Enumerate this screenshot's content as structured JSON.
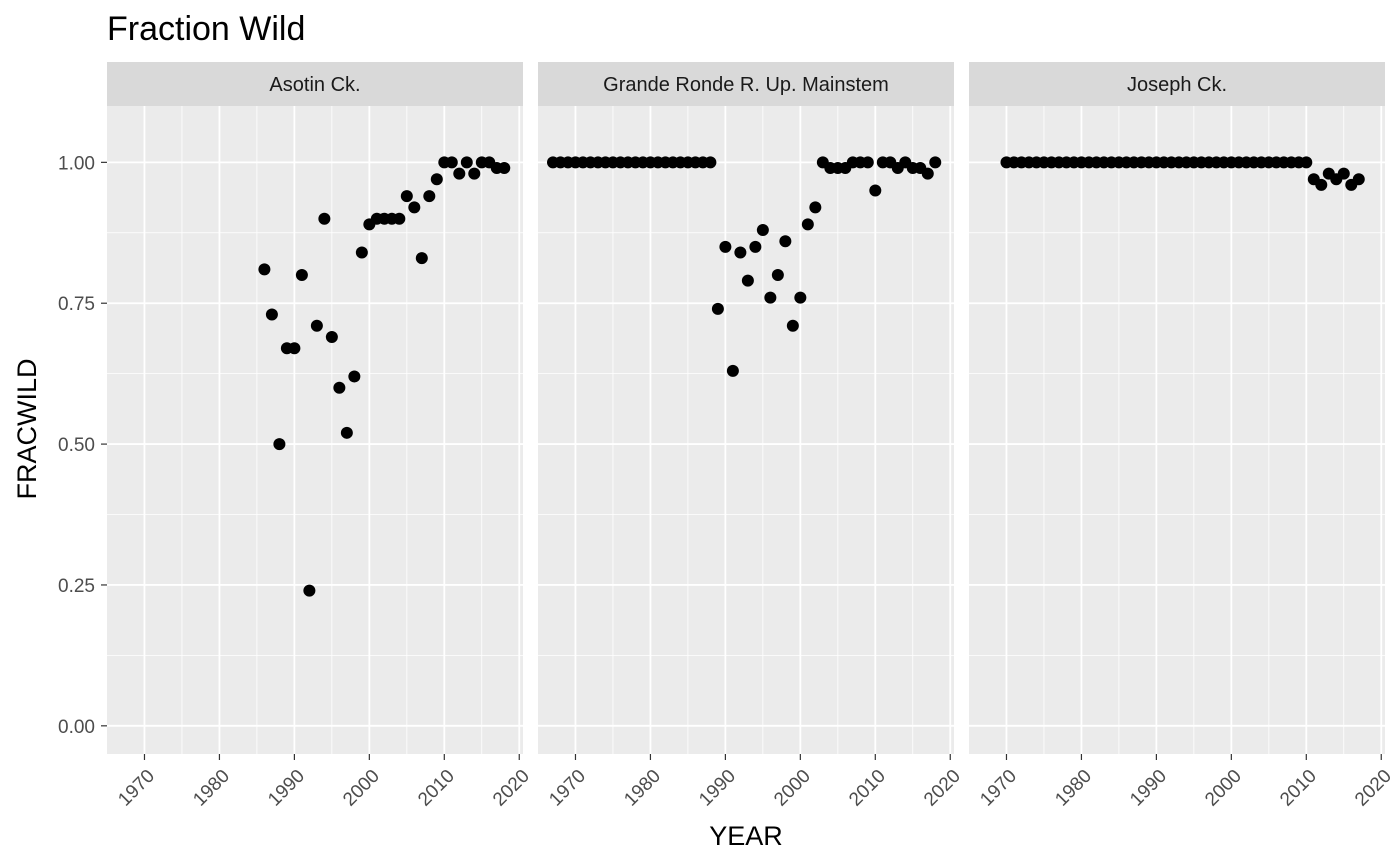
{
  "chart_data": {
    "type": "scatter",
    "title": "Fraction Wild",
    "xlabel": "YEAR",
    "ylabel": "FRACWILD",
    "xlim": [
      1965,
      2020.5
    ],
    "ylim": [
      -0.05,
      1.1
    ],
    "x_ticks": [
      1970,
      1980,
      1990,
      2000,
      2010,
      2020
    ],
    "y_ticks": [
      0.0,
      0.25,
      0.5,
      0.75,
      1.0
    ],
    "y_tick_labels": [
      "0.00",
      "0.25",
      "0.50",
      "0.75",
      "1.00"
    ],
    "grid": true,
    "colors": {
      "panel": "#ebebeb",
      "strip": "#d9d9d9",
      "grid": "#ffffff",
      "point": "#000000"
    },
    "panels": [
      {
        "name": "Asotin Ck.",
        "points": [
          [
            1986,
            0.81
          ],
          [
            1987,
            0.73
          ],
          [
            1988,
            0.5
          ],
          [
            1989,
            0.67
          ],
          [
            1990,
            0.67
          ],
          [
            1991,
            0.8
          ],
          [
            1992,
            0.24
          ],
          [
            1993,
            0.71
          ],
          [
            1994,
            0.9
          ],
          [
            1995,
            0.69
          ],
          [
            1996,
            0.6
          ],
          [
            1997,
            0.52
          ],
          [
            1998,
            0.62
          ],
          [
            1999,
            0.84
          ],
          [
            2000,
            0.89
          ],
          [
            2001,
            0.9
          ],
          [
            2002,
            0.9
          ],
          [
            2003,
            0.9
          ],
          [
            2004,
            0.9
          ],
          [
            2005,
            0.94
          ],
          [
            2006,
            0.92
          ],
          [
            2007,
            0.83
          ],
          [
            2008,
            0.94
          ],
          [
            2009,
            0.97
          ],
          [
            2010,
            1.0
          ],
          [
            2011,
            1.0
          ],
          [
            2012,
            0.98
          ],
          [
            2013,
            1.0
          ],
          [
            2014,
            0.98
          ],
          [
            2015,
            1.0
          ],
          [
            2016,
            1.0
          ],
          [
            2017,
            0.99
          ],
          [
            2018,
            0.99
          ]
        ]
      },
      {
        "name": "Grande Ronde R. Up. Mainstem",
        "points": [
          [
            1967,
            1.0
          ],
          [
            1968,
            1.0
          ],
          [
            1969,
            1.0
          ],
          [
            1970,
            1.0
          ],
          [
            1971,
            1.0
          ],
          [
            1972,
            1.0
          ],
          [
            1973,
            1.0
          ],
          [
            1974,
            1.0
          ],
          [
            1975,
            1.0
          ],
          [
            1976,
            1.0
          ],
          [
            1977,
            1.0
          ],
          [
            1978,
            1.0
          ],
          [
            1979,
            1.0
          ],
          [
            1980,
            1.0
          ],
          [
            1981,
            1.0
          ],
          [
            1982,
            1.0
          ],
          [
            1983,
            1.0
          ],
          [
            1984,
            1.0
          ],
          [
            1985,
            1.0
          ],
          [
            1986,
            1.0
          ],
          [
            1987,
            1.0
          ],
          [
            1988,
            1.0
          ],
          [
            1989,
            0.74
          ],
          [
            1990,
            0.85
          ],
          [
            1991,
            0.63
          ],
          [
            1992,
            0.84
          ],
          [
            1993,
            0.79
          ],
          [
            1994,
            0.85
          ],
          [
            1995,
            0.88
          ],
          [
            1996,
            0.76
          ],
          [
            1997,
            0.8
          ],
          [
            1998,
            0.86
          ],
          [
            1999,
            0.71
          ],
          [
            2000,
            0.76
          ],
          [
            2001,
            0.89
          ],
          [
            2002,
            0.92
          ],
          [
            2003,
            1.0
          ],
          [
            2004,
            0.99
          ],
          [
            2005,
            0.99
          ],
          [
            2006,
            0.99
          ],
          [
            2007,
            1.0
          ],
          [
            2008,
            1.0
          ],
          [
            2009,
            1.0
          ],
          [
            2010,
            0.95
          ],
          [
            2011,
            1.0
          ],
          [
            2012,
            1.0
          ],
          [
            2013,
            0.99
          ],
          [
            2014,
            1.0
          ],
          [
            2015,
            0.99
          ],
          [
            2016,
            0.99
          ],
          [
            2017,
            0.98
          ],
          [
            2018,
            1.0
          ]
        ]
      },
      {
        "name": "Joseph Ck.",
        "points": [
          [
            1970,
            1.0
          ],
          [
            1971,
            1.0
          ],
          [
            1972,
            1.0
          ],
          [
            1973,
            1.0
          ],
          [
            1974,
            1.0
          ],
          [
            1975,
            1.0
          ],
          [
            1976,
            1.0
          ],
          [
            1977,
            1.0
          ],
          [
            1978,
            1.0
          ],
          [
            1979,
            1.0
          ],
          [
            1980,
            1.0
          ],
          [
            1981,
            1.0
          ],
          [
            1982,
            1.0
          ],
          [
            1983,
            1.0
          ],
          [
            1984,
            1.0
          ],
          [
            1985,
            1.0
          ],
          [
            1986,
            1.0
          ],
          [
            1987,
            1.0
          ],
          [
            1988,
            1.0
          ],
          [
            1989,
            1.0
          ],
          [
            1990,
            1.0
          ],
          [
            1991,
            1.0
          ],
          [
            1992,
            1.0
          ],
          [
            1993,
            1.0
          ],
          [
            1994,
            1.0
          ],
          [
            1995,
            1.0
          ],
          [
            1996,
            1.0
          ],
          [
            1997,
            1.0
          ],
          [
            1998,
            1.0
          ],
          [
            1999,
            1.0
          ],
          [
            2000,
            1.0
          ],
          [
            2001,
            1.0
          ],
          [
            2002,
            1.0
          ],
          [
            2003,
            1.0
          ],
          [
            2004,
            1.0
          ],
          [
            2005,
            1.0
          ],
          [
            2006,
            1.0
          ],
          [
            2007,
            1.0
          ],
          [
            2008,
            1.0
          ],
          [
            2009,
            1.0
          ],
          [
            2010,
            1.0
          ],
          [
            2011,
            0.97
          ],
          [
            2012,
            0.96
          ],
          [
            2013,
            0.98
          ],
          [
            2014,
            0.97
          ],
          [
            2015,
            0.98
          ],
          [
            2016,
            0.96
          ],
          [
            2017,
            0.97
          ]
        ]
      }
    ]
  }
}
